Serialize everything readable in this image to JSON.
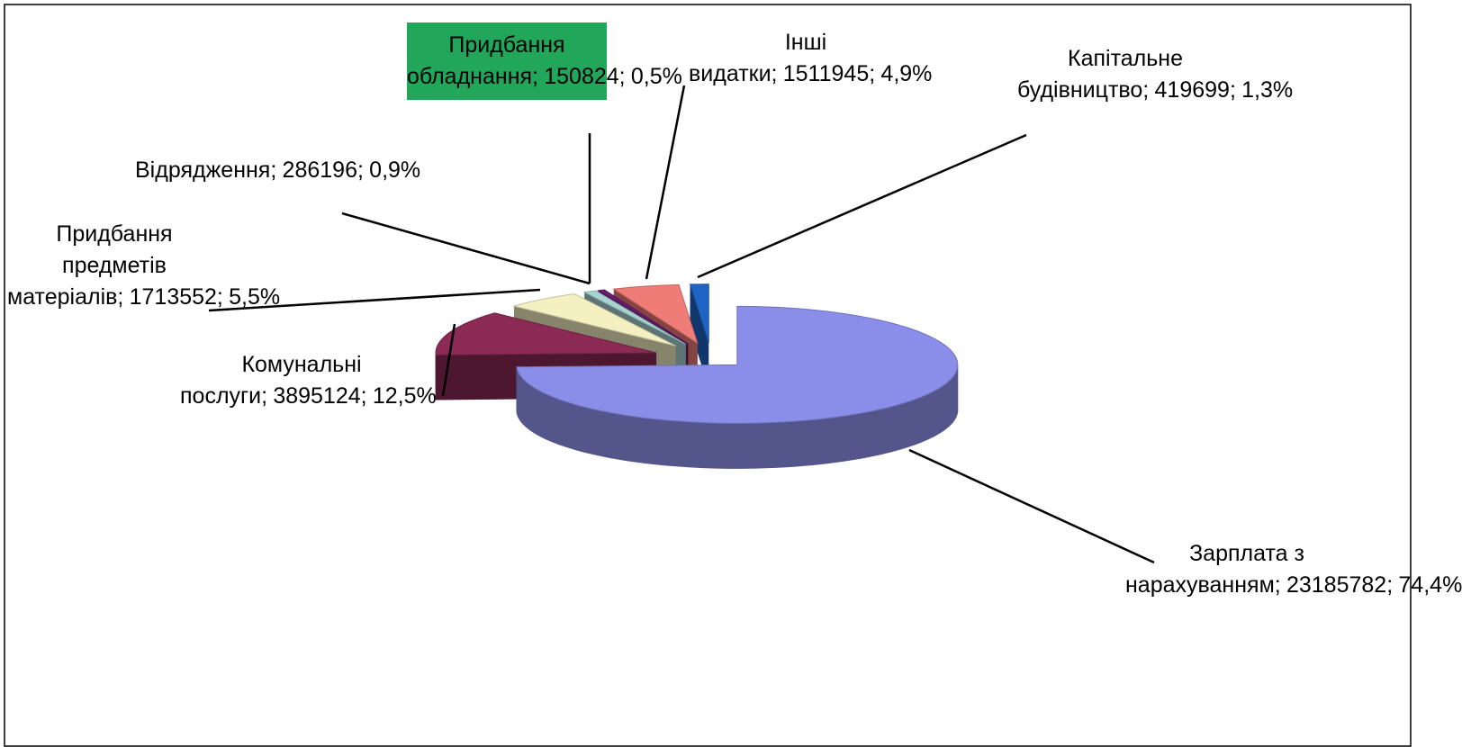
{
  "chart_data": {
    "type": "pie3d",
    "categories": [
      "Зарплата з нарахуванням;",
      "Комунальні послуги;",
      "Придбання предметів матеріалів;",
      "Відрядження;",
      "Придбання обладнання;",
      "Інші видатки;",
      "Капітальне будівництво;"
    ],
    "values": [
      23185782,
      3895124,
      1713552,
      286196,
      150824,
      1511945,
      419699
    ],
    "value_labels": [
      "23185782;",
      "3895124;",
      "1713552;",
      "286196;",
      "150824;",
      "1511945;",
      "419699;"
    ],
    "percents": [
      74.4,
      12.5,
      5.5,
      0.9,
      0.5,
      4.9,
      1.3
    ],
    "percent_labels": [
      "74,4%",
      "12,5%",
      "5,5%",
      "0,9%",
      "0,5%",
      "4,9%",
      "1,3%"
    ],
    "colors": [
      "#8a8ee8",
      "#8b2a55",
      "#f4f0c2",
      "#a9d3d3",
      "#6c1b6e",
      "#f07c78",
      "#1f63c4"
    ],
    "highlight": 4
  }
}
